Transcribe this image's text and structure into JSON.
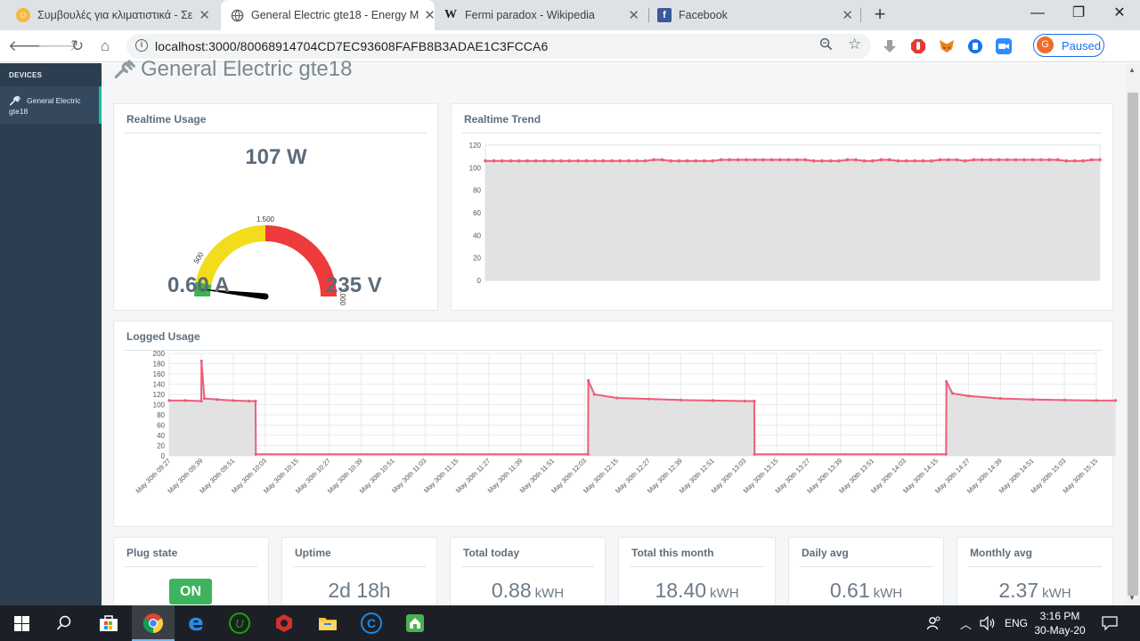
{
  "browser": {
    "tabs": [
      {
        "title": "Συμβουλές για κλιματιστικά - Σε",
        "favicon": "bulb-icon",
        "active": false
      },
      {
        "title": "General Electric gte18 - Energy M",
        "favicon": "globe-icon",
        "active": true
      },
      {
        "title": "Fermi paradox - Wikipedia",
        "favicon": "wikipedia-icon",
        "active": false
      },
      {
        "title": "Facebook",
        "favicon": "facebook-icon",
        "active": false
      }
    ],
    "url": "localhost:3000/80068914704CD7EC93608FAFB8B3ADAE1C3FCCA6",
    "profile_initial": "G",
    "profile_status": "Paused"
  },
  "sidebar": {
    "section_title": "DEVICES",
    "devices": [
      {
        "label": "General Electric gte18"
      }
    ]
  },
  "page": {
    "title": "General Electric gte18"
  },
  "realtime_usage": {
    "heading": "Realtime Usage",
    "watts": "107 W",
    "amps": "0.60 A",
    "volts": "235 V",
    "gauge": {
      "min": 0,
      "max": 3000,
      "value": 107,
      "tick_labels": [
        "500",
        "1.500",
        "3.000"
      ],
      "bands": [
        {
          "from": 0,
          "to": 200,
          "color": "#3cb44b"
        },
        {
          "from": 200,
          "to": 1500,
          "color": "#f2dc1c"
        },
        {
          "from": 1500,
          "to": 3000,
          "color": "#ee3a3a"
        }
      ]
    }
  },
  "realtime_trend": {
    "heading": "Realtime Trend",
    "chart_data": {
      "type": "area",
      "ylim": [
        0,
        120
      ],
      "yticks": [
        0,
        20,
        40,
        60,
        80,
        100,
        120
      ],
      "y": [
        106,
        106,
        106,
        106,
        106,
        106,
        106,
        106,
        106,
        106,
        106,
        106,
        106,
        106,
        106,
        106,
        106,
        106,
        106,
        106,
        107,
        107,
        106,
        106,
        106,
        106,
        106,
        106,
        107,
        107,
        107,
        107,
        107,
        107,
        107,
        107,
        107,
        107,
        107,
        106,
        106,
        106,
        106,
        107,
        107,
        106,
        106,
        107,
        107,
        106,
        106,
        106,
        106,
        106,
        107,
        107,
        107,
        106,
        107,
        107,
        107,
        107,
        107,
        107,
        107,
        107,
        107,
        107,
        107,
        106,
        106,
        106,
        107,
        107
      ],
      "color": "#ee5d7b",
      "grid": true
    }
  },
  "logged_usage": {
    "heading": "Logged Usage",
    "chart_data": {
      "type": "area",
      "ylim": [
        0,
        200
      ],
      "yticks": [
        0,
        20,
        40,
        60,
        80,
        100,
        120,
        140,
        160,
        180,
        200
      ],
      "x_labels": [
        "May 30th 09:27",
        "May 30th 09:39",
        "May 30th 09:51",
        "May 30th 10:03",
        "May 30th 10:15",
        "May 30th 10:27",
        "May 30th 10:39",
        "May 30th 10:51",
        "May 30th 11:03",
        "May 30th 11:15",
        "May 30th 11:27",
        "May 30th 11:39",
        "May 30th 11:51",
        "May 30th 12:03",
        "May 30th 12:15",
        "May 30th 12:27",
        "May 30th 12:39",
        "May 30th 12:51",
        "May 30th 13:03",
        "May 30th 13:15",
        "May 30th 13:27",
        "May 30th 13:39",
        "May 30th 13:51",
        "May 30th 14:03",
        "May 30th 14:15",
        "May 30th 14:27",
        "May 30th 14:39",
        "May 30th 14:51",
        "May 30th 15:03",
        "May 30th 15:15"
      ],
      "series_points": [
        [
          0,
          108
        ],
        [
          0.5,
          108
        ],
        [
          1,
          107
        ],
        [
          1.01,
          185
        ],
        [
          1.1,
          112
        ],
        [
          1.5,
          110
        ],
        [
          2,
          108
        ],
        [
          2.5,
          107
        ],
        [
          2.7,
          107
        ],
        [
          2.71,
          3
        ],
        [
          13.1,
          3
        ],
        [
          13.11,
          147
        ],
        [
          13.3,
          120
        ],
        [
          14,
          113
        ],
        [
          15,
          111
        ],
        [
          16,
          109
        ],
        [
          17,
          108
        ],
        [
          18,
          107
        ],
        [
          18.3,
          107
        ],
        [
          18.31,
          3
        ],
        [
          24.3,
          3
        ],
        [
          24.31,
          145
        ],
        [
          24.5,
          122
        ],
        [
          25,
          117
        ],
        [
          26,
          112
        ],
        [
          27,
          110
        ],
        [
          28,
          109
        ],
        [
          29,
          108
        ],
        [
          29.6,
          108
        ]
      ],
      "color": "#ee5d7b",
      "grid": true
    }
  },
  "stats": [
    {
      "label": "Plug state",
      "value": "ON",
      "unit": ""
    },
    {
      "label": "Uptime",
      "value": "2d 18h",
      "unit": ""
    },
    {
      "label": "Total today",
      "value": "0.88",
      "unit": "kWH"
    },
    {
      "label": "Total this month",
      "value": "18.40",
      "unit": "kWH"
    },
    {
      "label": "Daily avg",
      "value": "0.61",
      "unit": "kWH"
    },
    {
      "label": "Monthly avg",
      "value": "2.37",
      "unit": "kWH"
    }
  ],
  "taskbar": {
    "language": "ENG",
    "time": "3:16 PM",
    "date": "30-May-20"
  }
}
